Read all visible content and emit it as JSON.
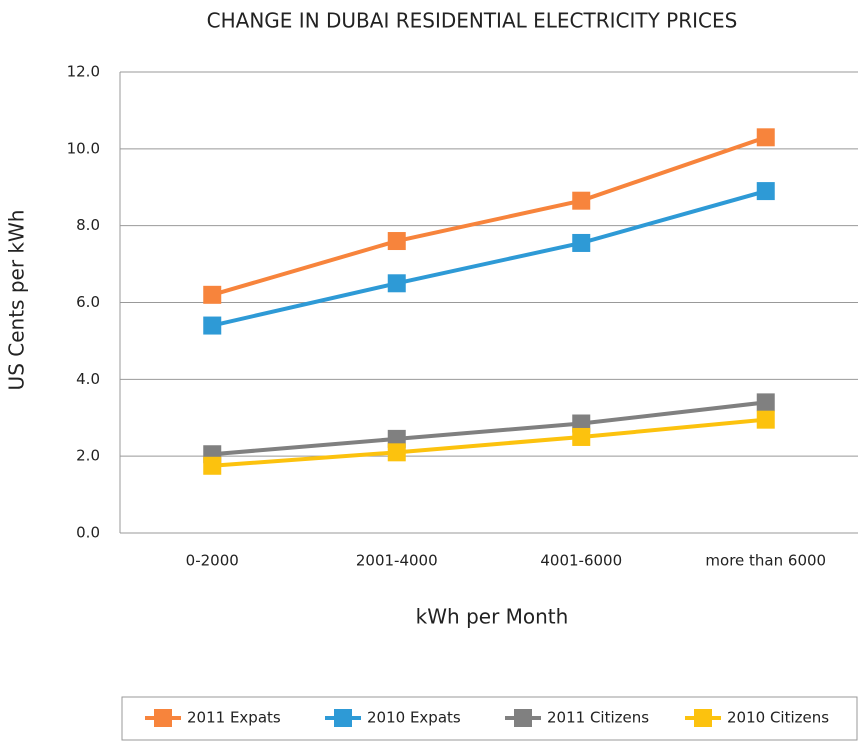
{
  "chart_data": {
    "type": "line",
    "title": "CHANGE IN DUBAI RESIDENTIAL ELECTRICITY PRICES",
    "x_label": "kWh per Month",
    "y_label": "US Cents per kWh",
    "categories": [
      "0-2000",
      "2001-4000",
      "4001-6000",
      "more than 6000"
    ],
    "series": [
      {
        "name": "2011 Expats",
        "color": "#f7843c",
        "values": [
          6.2,
          7.6,
          8.65,
          10.3
        ]
      },
      {
        "name": "2010 Expats",
        "color": "#2e9ad6",
        "values": [
          5.4,
          6.5,
          7.55,
          8.9
        ]
      },
      {
        "name": "2011 Citizens",
        "color": "#808080",
        "values": [
          2.05,
          2.45,
          2.85,
          3.4
        ]
      },
      {
        "name": "2010 Citizens",
        "color": "#fcc20e",
        "values": [
          1.75,
          2.1,
          2.5,
          2.95
        ]
      }
    ],
    "ylim": [
      0,
      12
    ],
    "yticks": [
      {
        "value": 0,
        "label": "0.0"
      },
      {
        "value": 2,
        "label": "2.0"
      },
      {
        "value": 4,
        "label": "4.0"
      },
      {
        "value": 6,
        "label": "6.0"
      },
      {
        "value": 8,
        "label": "8.0"
      },
      {
        "value": 10,
        "label": "10.0"
      },
      {
        "value": 12,
        "label": "12.0"
      }
    ],
    "grid": true,
    "legend": "bottom"
  }
}
